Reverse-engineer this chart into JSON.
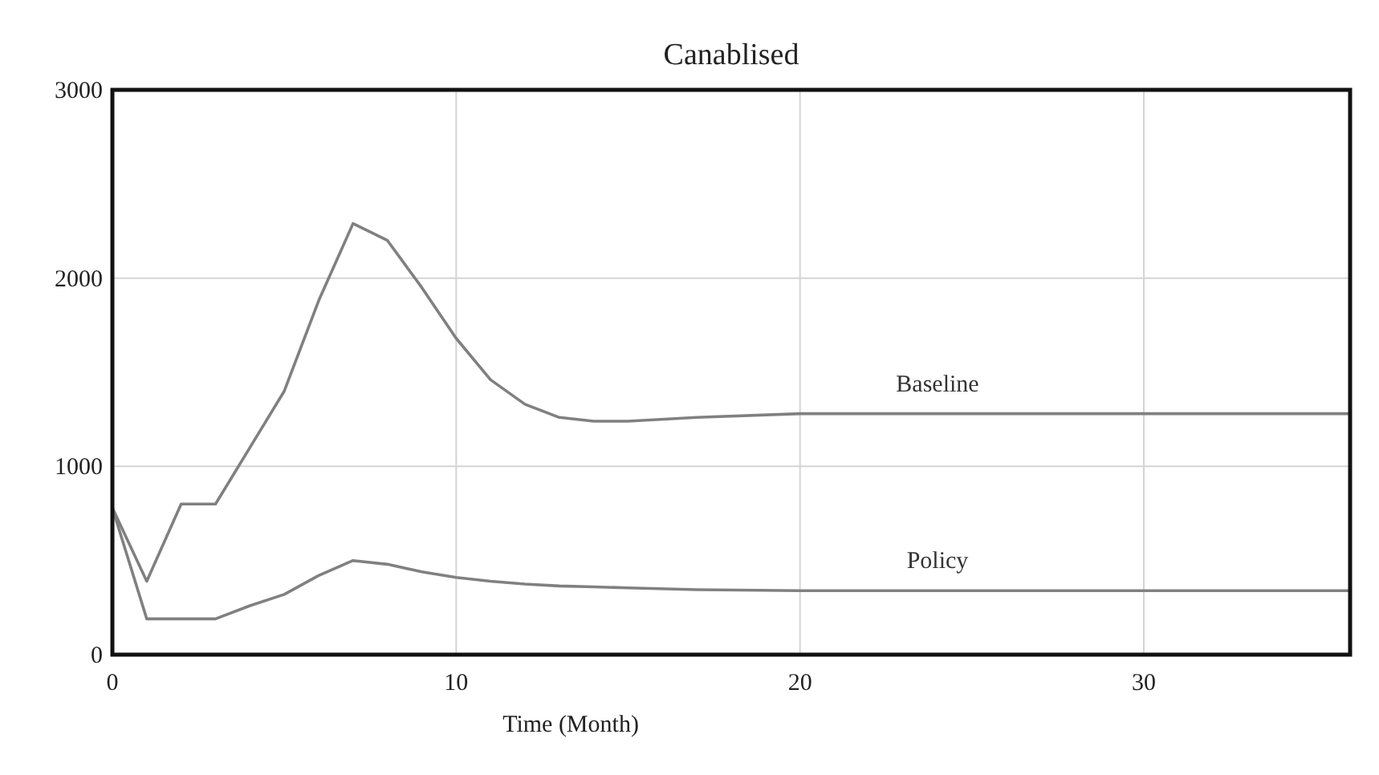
{
  "chart_data": {
    "type": "line",
    "title": "Canablised",
    "xlabel": "Time (Month)",
    "xlim": [
      0,
      36
    ],
    "xticks": [
      0,
      10,
      20,
      30
    ],
    "ylim": [
      0,
      3000
    ],
    "yticks": [
      0,
      1000,
      2000,
      3000
    ],
    "grid": true,
    "legend": false,
    "marker": "none",
    "line_style": "solid",
    "series": [
      {
        "name": "Baseline",
        "color": "#808080",
        "x": [
          0,
          1,
          2,
          3,
          4,
          5,
          6,
          7,
          8,
          9,
          10,
          11,
          12,
          13,
          14,
          15,
          17,
          20,
          25,
          30,
          36
        ],
        "values": [
          780,
          390,
          800,
          800,
          1100,
          1400,
          1880,
          2290,
          2200,
          1950,
          1680,
          1460,
          1330,
          1260,
          1240,
          1240,
          1260,
          1280,
          1280,
          1280,
          1280
        ]
      },
      {
        "name": "Policy",
        "color": "#808080",
        "x": [
          0,
          1,
          2,
          3,
          4,
          5,
          6,
          7,
          8,
          9,
          10,
          11,
          12,
          13,
          14,
          15,
          17,
          20,
          25,
          30,
          36
        ],
        "values": [
          780,
          190,
          190,
          190,
          260,
          320,
          420,
          500,
          480,
          440,
          410,
          390,
          375,
          365,
          360,
          355,
          345,
          340,
          340,
          340,
          340
        ]
      }
    ]
  }
}
